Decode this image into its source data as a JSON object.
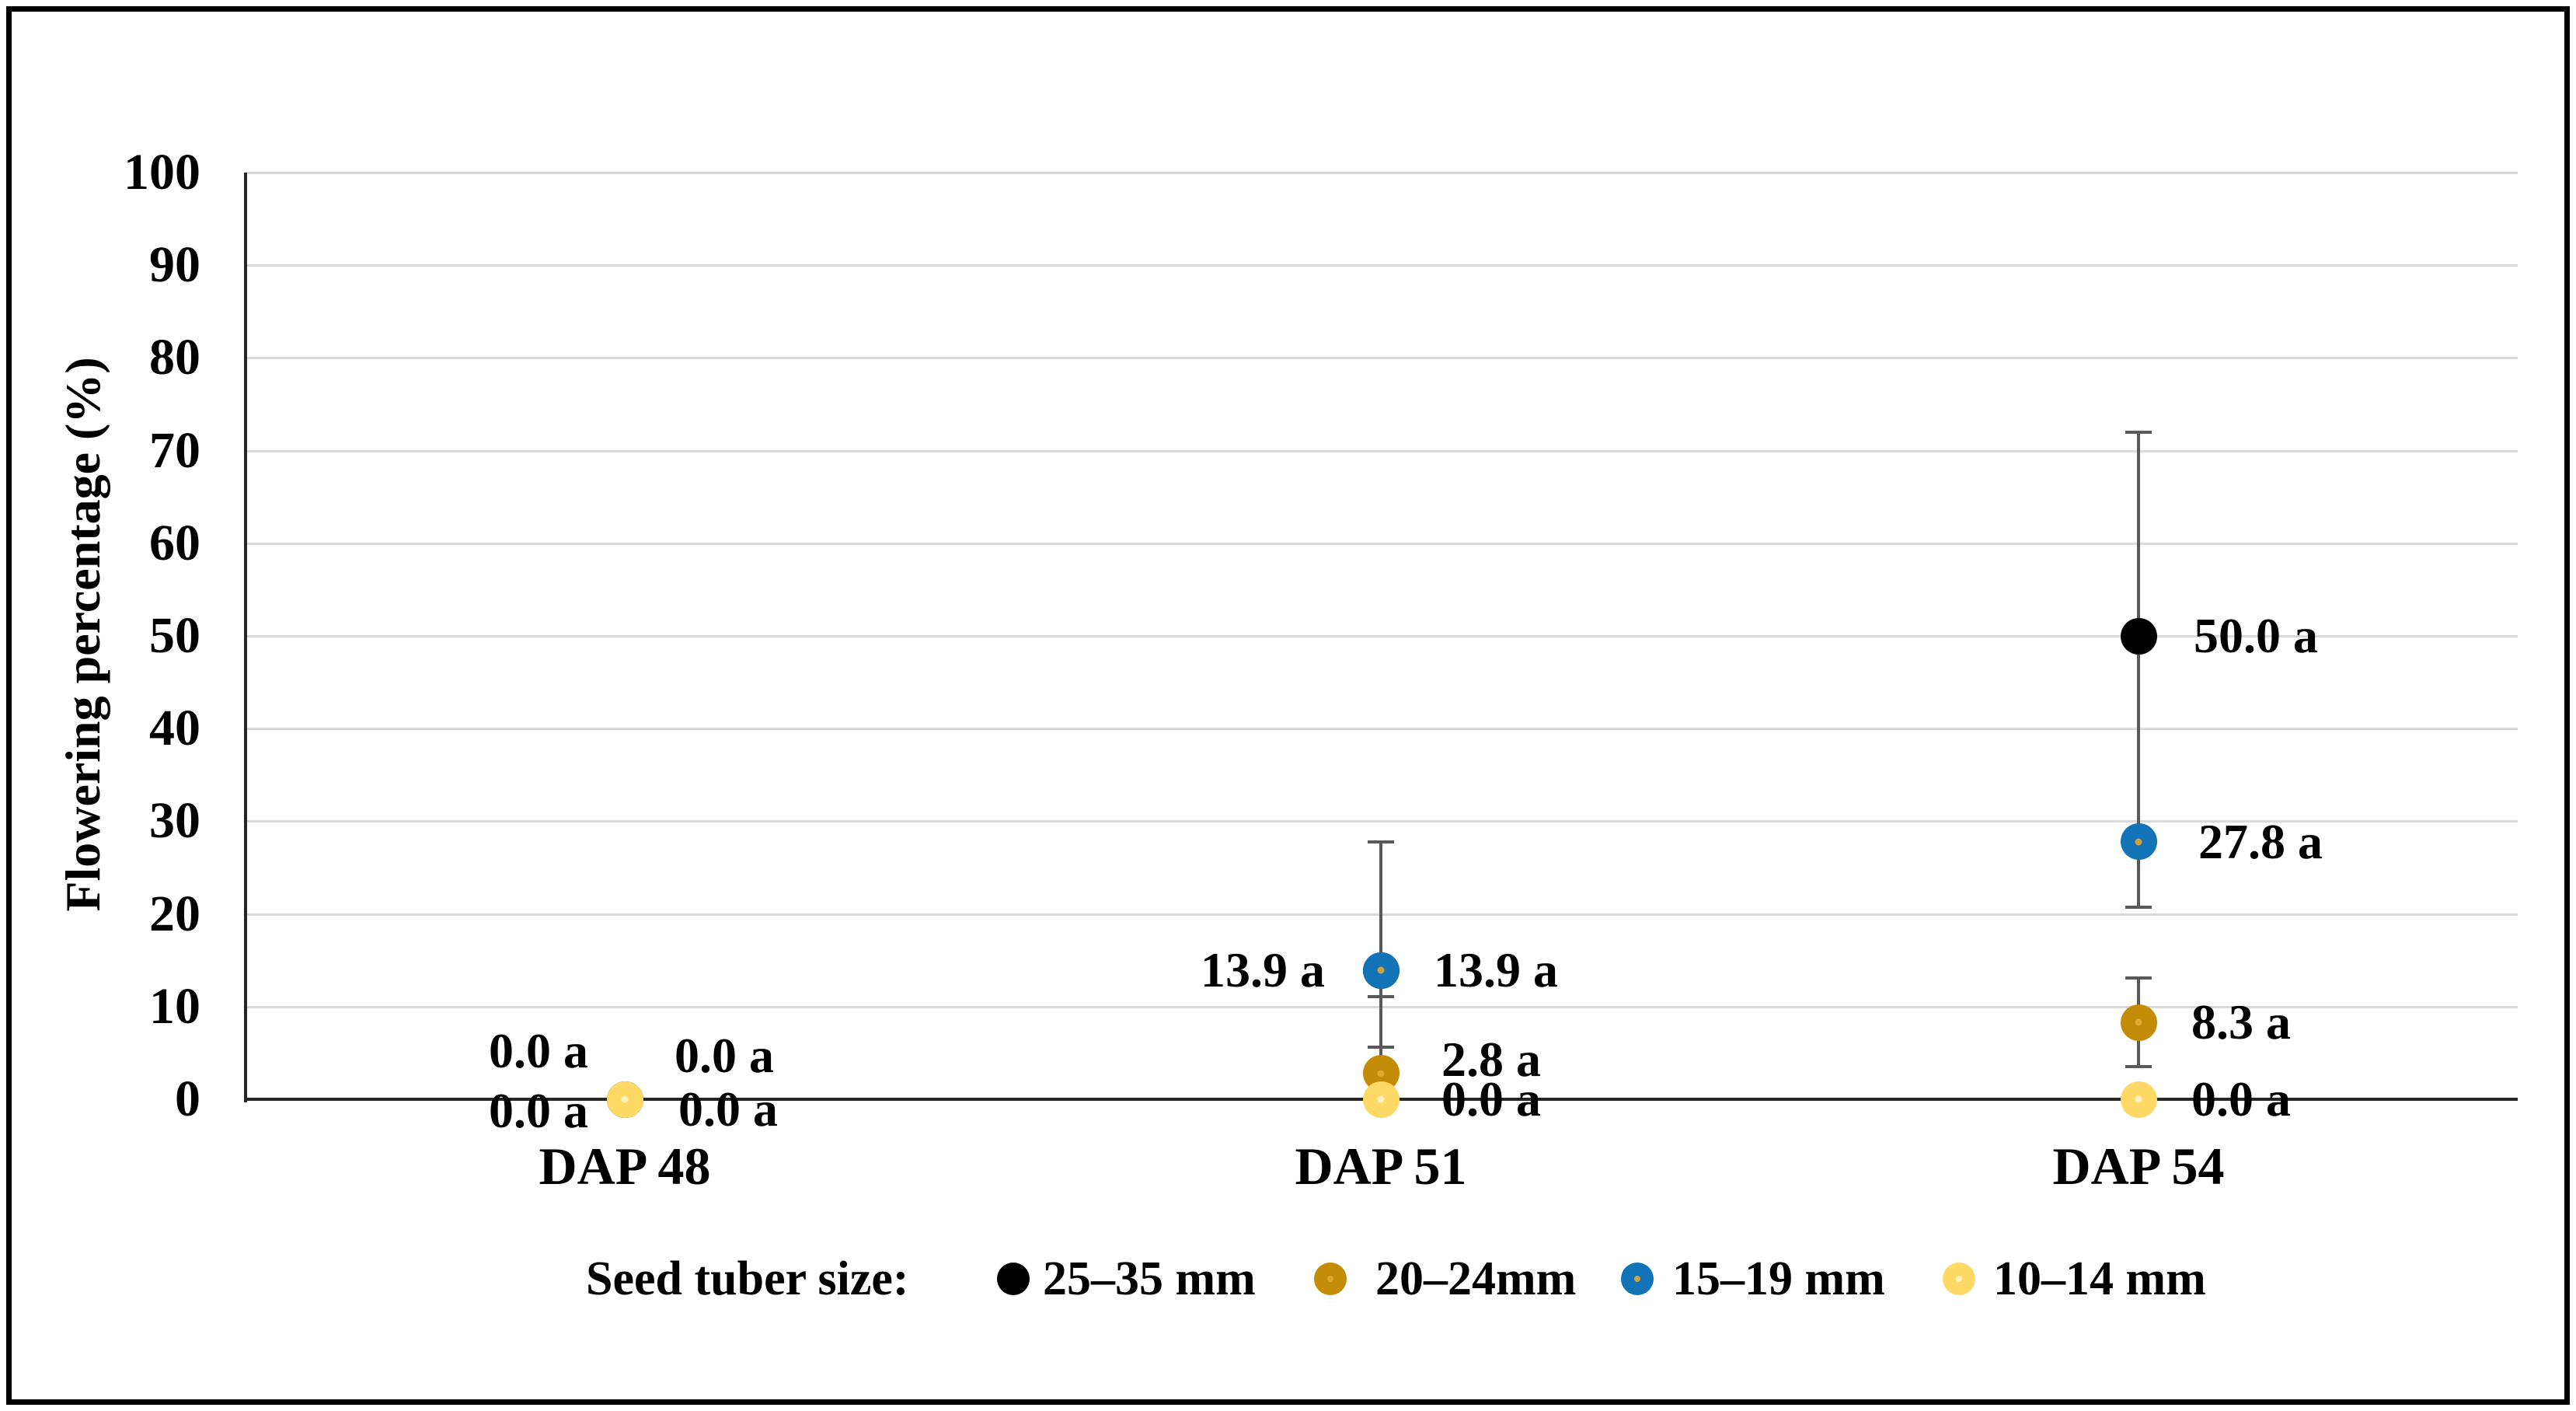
{
  "figure": {
    "background": "#ffffff",
    "border_color": "#000000"
  },
  "y_axis": {
    "title": "Flowering percentage (%)",
    "tick_values": [
      100,
      90,
      80,
      70,
      60,
      50,
      40,
      30,
      20,
      10,
      0
    ],
    "min": 0,
    "max": 100
  },
  "x_axis": {
    "categories": [
      "DAP 48",
      "DAP 51",
      "DAP 54"
    ]
  },
  "legend": {
    "title": "Seed tuber size:",
    "items": [
      {
        "label": "25–35 mm",
        "color": "#000000",
        "center_dot": null
      },
      {
        "label": "20–24mm",
        "color": "#C48C06",
        "center_dot": "#DFA92F"
      },
      {
        "label": "15–19 mm",
        "color": "#1373B7",
        "center_dot": "#D2A240"
      },
      {
        "label": "10–14 mm",
        "color": "#FFD966",
        "center_dot": "#FFF0C2"
      }
    ]
  },
  "chart_data": {
    "type": "scatter",
    "title": "",
    "xlabel": "",
    "ylabel": "Flowering percentage (%)",
    "ylim": [
      0,
      100
    ],
    "grid": true,
    "legend_position": "bottom",
    "categories": [
      "DAP 48",
      "DAP 51",
      "DAP 54"
    ],
    "series": [
      {
        "name": "25–35 mm",
        "color": "#000000",
        "center_dot": null,
        "values": [
          0.0,
          13.9,
          50.0
        ]
      },
      {
        "name": "20–24mm",
        "color": "#C48C06",
        "center_dot": "#DFA92F",
        "values": [
          0.0,
          2.8,
          8.3
        ]
      },
      {
        "name": "15–19 mm",
        "color": "#1373B7",
        "center_dot": "#D2A240",
        "values": [
          0.0,
          13.9,
          27.8
        ]
      },
      {
        "name": "10–14 mm",
        "color": "#FFD966",
        "center_dot": "#FFF0C2",
        "values": [
          0.0,
          0.0,
          0.0
        ]
      }
    ],
    "error_bars": [
      {
        "category_index": 1,
        "line": [
          0.5,
          27.8
        ],
        "caps": [
          27.8,
          11.1,
          5.6
        ]
      },
      {
        "category_index": 2,
        "line": [
          20.7,
          72.0
        ],
        "caps": [
          72.0,
          20.7
        ]
      },
      {
        "category_index": 2,
        "line": [
          3.5,
          13.1
        ],
        "caps": [
          13.1,
          3.5
        ]
      }
    ],
    "point_labels": [
      {
        "category_index": 0,
        "text": "0.0 a",
        "side": "left",
        "v": 5.2,
        "gap": 47
      },
      {
        "category_index": 0,
        "text": "0.0 a",
        "side": "left",
        "v": -1.3,
        "gap": 47
      },
      {
        "category_index": 0,
        "text": "0.0 a",
        "side": "right",
        "v": 4.7,
        "gap": 64
      },
      {
        "category_index": 0,
        "text": "0.0 a",
        "side": "right",
        "v": -1.1,
        "gap": 69
      },
      {
        "category_index": 1,
        "text": "13.9 a",
        "side": "left",
        "v": 13.9,
        "gap": 72
      },
      {
        "category_index": 1,
        "text": "13.9 a",
        "side": "right",
        "v": 13.9,
        "gap": 68
      },
      {
        "category_index": 1,
        "text": "2.8 a",
        "side": "right",
        "v": 4.3,
        "gap": 78
      },
      {
        "category_index": 1,
        "text": "0.0 a",
        "side": "right",
        "v": 0.0,
        "gap": 78
      },
      {
        "category_index": 2,
        "text": "50.0 a",
        "side": "right",
        "v": 50.0,
        "gap": 71
      },
      {
        "category_index": 2,
        "text": "27.8 a",
        "side": "right",
        "v": 27.8,
        "gap": 77
      },
      {
        "category_index": 2,
        "text": "8.3 a",
        "side": "right",
        "v": 8.3,
        "gap": 68
      },
      {
        "category_index": 2,
        "text": "0.0 a",
        "side": "right",
        "v": 0.0,
        "gap": 68
      }
    ],
    "colors": {
      "gridline": "#d9d9d9",
      "axis": "#262626",
      "error_bar": "#595959"
    }
  }
}
